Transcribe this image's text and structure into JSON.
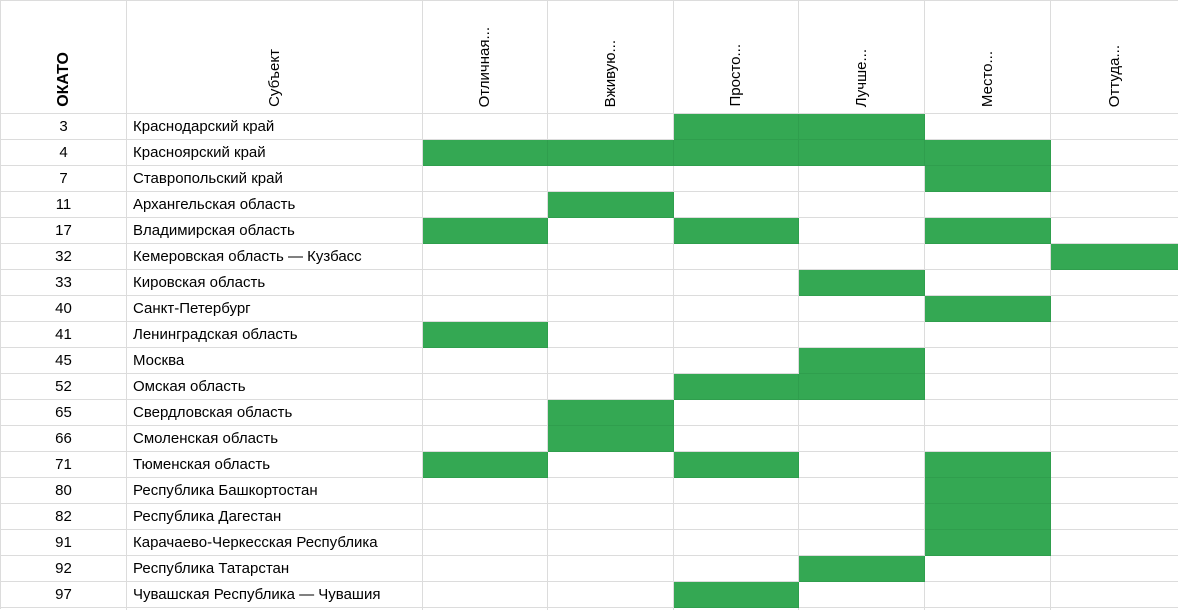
{
  "header": {
    "okato_label": "ОКАТО",
    "subject_label": "Субъект",
    "columns": [
      "Отличная...",
      "Вживую...",
      "Просто...",
      "Лучше...",
      "Место...",
      "Оттуда..."
    ]
  },
  "rows": [
    {
      "okato": "3",
      "subject": "Краснодарский край",
      "cells": [
        0,
        0,
        1,
        1,
        0,
        0
      ]
    },
    {
      "okato": "4",
      "subject": "Красноярский край",
      "cells": [
        1,
        1,
        1,
        1,
        1,
        0
      ]
    },
    {
      "okato": "7",
      "subject": "Ставропольский край",
      "cells": [
        0,
        0,
        0,
        0,
        1,
        0
      ]
    },
    {
      "okato": "11",
      "subject": "Архангельская область",
      "cells": [
        0,
        1,
        0,
        0,
        0,
        0
      ]
    },
    {
      "okato": "17",
      "subject": "Владимирская область",
      "cells": [
        1,
        0,
        1,
        0,
        1,
        0
      ]
    },
    {
      "okato": "32",
      "subject": "Кемеровская область — Кузбасс",
      "cells": [
        0,
        0,
        0,
        0,
        0,
        1
      ]
    },
    {
      "okato": "33",
      "subject": "Кировская область",
      "cells": [
        0,
        0,
        0,
        1,
        0,
        0
      ]
    },
    {
      "okato": "40",
      "subject": "Санкт-Петербург",
      "cells": [
        0,
        0,
        0,
        0,
        1,
        0
      ]
    },
    {
      "okato": "41",
      "subject": "Ленинградская область",
      "cells": [
        1,
        0,
        0,
        0,
        0,
        0
      ]
    },
    {
      "okato": "45",
      "subject": "Москва",
      "cells": [
        0,
        0,
        0,
        1,
        0,
        0
      ]
    },
    {
      "okato": "52",
      "subject": "Омская область",
      "cells": [
        0,
        0,
        1,
        1,
        0,
        0
      ]
    },
    {
      "okato": "65",
      "subject": "Свердловская область",
      "cells": [
        0,
        1,
        0,
        0,
        0,
        0
      ]
    },
    {
      "okato": "66",
      "subject": "Смоленская область",
      "cells": [
        0,
        1,
        0,
        0,
        0,
        0
      ]
    },
    {
      "okato": "71",
      "subject": "Тюменская область",
      "cells": [
        1,
        0,
        1,
        0,
        1,
        0
      ]
    },
    {
      "okato": "80",
      "subject": "Республика Башкортостан",
      "cells": [
        0,
        0,
        0,
        0,
        1,
        0
      ]
    },
    {
      "okato": "82",
      "subject": "Республика Дагестан",
      "cells": [
        0,
        0,
        0,
        0,
        1,
        0
      ]
    },
    {
      "okato": "91",
      "subject": "Карачаево-Черкесская Республика",
      "cells": [
        0,
        0,
        0,
        0,
        1,
        0
      ]
    },
    {
      "okato": "92",
      "subject": "Республика Татарстан",
      "cells": [
        0,
        0,
        0,
        1,
        0,
        0
      ]
    },
    {
      "okato": "97",
      "subject": "Чувашская Республика — Чувашия",
      "cells": [
        0,
        0,
        1,
        0,
        0,
        0
      ]
    }
  ],
  "colors": {
    "cell_fill_green": "#34a853",
    "gridline": "#dcdcdc",
    "gridline_on_fill": "#2f9e4d",
    "text": "#000000",
    "background": "#ffffff"
  }
}
